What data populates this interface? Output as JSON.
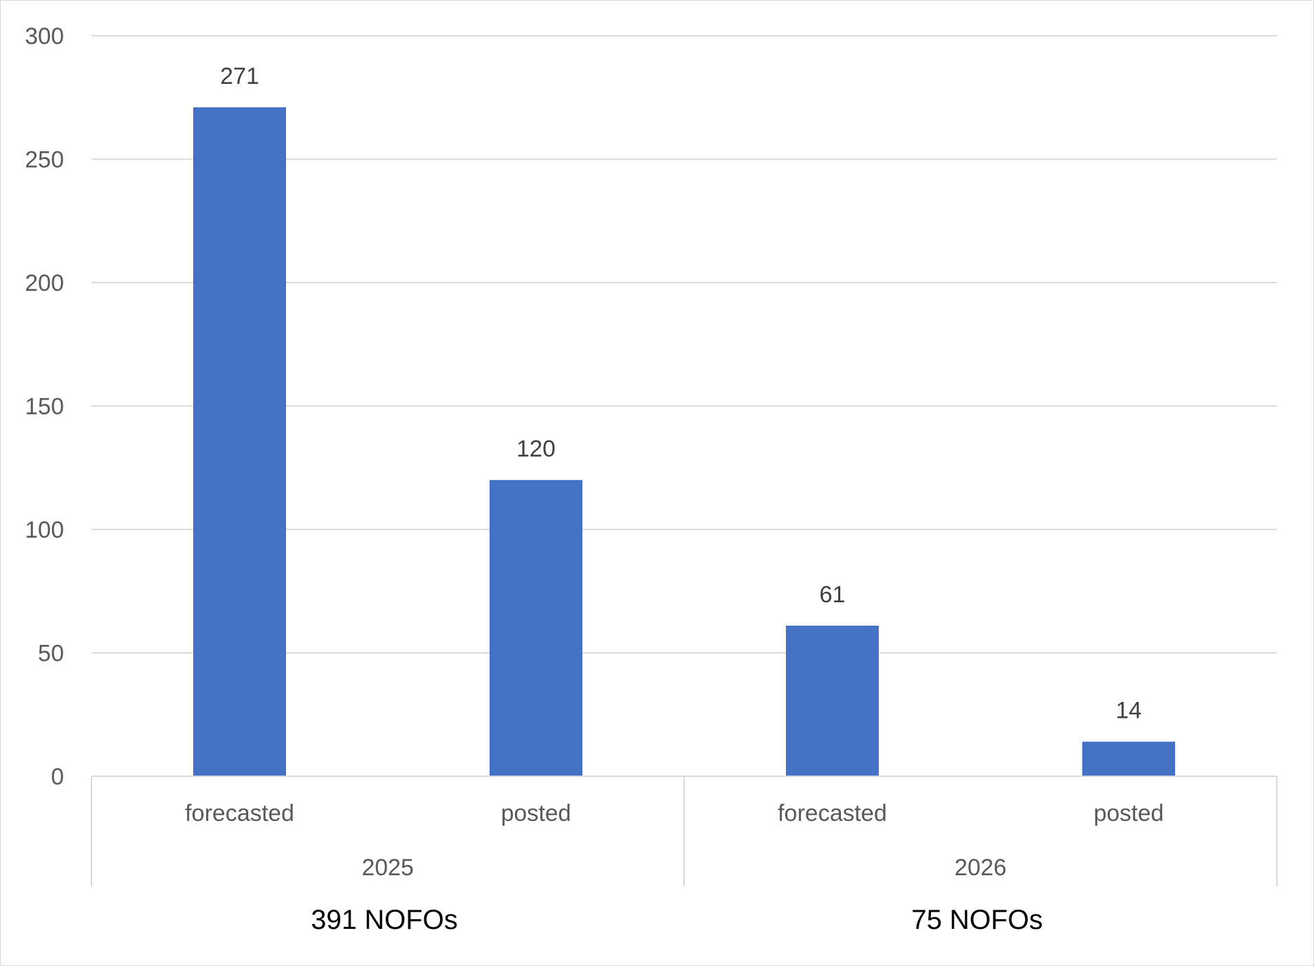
{
  "chart_data": {
    "type": "bar",
    "title": "",
    "xlabel": "",
    "ylabel": "",
    "ylim": [
      0,
      300
    ],
    "yticks": [
      0,
      50,
      100,
      150,
      200,
      250,
      300
    ],
    "grid": true,
    "legend": "none",
    "bar_color": "#4472C4",
    "categories": [
      "forecasted",
      "posted",
      "forecasted",
      "posted"
    ],
    "groups": [
      {
        "label": "2025",
        "total_label": "391 NOFOs",
        "bars": [
          {
            "category": "forecasted",
            "value": 271
          },
          {
            "category": "posted",
            "value": 120
          }
        ]
      },
      {
        "label": "2026",
        "total_label": "75 NOFOs",
        "bars": [
          {
            "category": "forecasted",
            "value": 61
          },
          {
            "category": "posted",
            "value": 14
          }
        ]
      }
    ]
  }
}
